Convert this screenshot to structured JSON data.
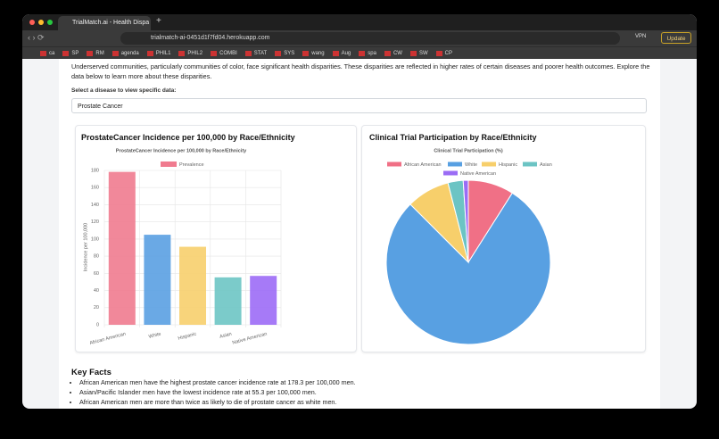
{
  "browser": {
    "tab_title": "TrialMatch.ai - Health Dispa",
    "url": "trialmatch-ai-0451d1f7fd04.herokuapp.com",
    "bookmarks": [
      "ca",
      "SP",
      "RM",
      "agenda",
      "PHIL1",
      "PHIL2",
      "COMBI",
      "STAT",
      "SYS",
      "wang",
      "Aug",
      "spa",
      "CW",
      "SW",
      "CP"
    ],
    "vpn": "VPN",
    "update": "Update"
  },
  "page": {
    "intro": "Underserved communities, particularly communities of color, face significant health disparities. These disparities are reflected in higher rates of certain diseases and poorer health outcomes. Explore the data below to learn more about these disparities.",
    "select_label": "Select a disease to view specific data:",
    "selected": "Prostate Cancer",
    "bar_card_title": "ProstateCancer Incidence per 100,000 by Race/Ethnicity",
    "pie_card_title": "Clinical Trial Participation by Race/Ethnicity",
    "key_facts_title": "Key Facts",
    "key_facts": [
      "African American men have the highest prostate cancer incidence rate at 178.3 per 100,000 men.",
      "Asian/Pacific Islander men have the lowest incidence rate at 55.3 per 100,000 men.",
      "African American men are more than twice as likely to die of prostate cancer as white men."
    ]
  },
  "chart_data": [
    {
      "type": "bar",
      "title": "ProstateCancer Incidence per 100,000 by Race/Ethnicity",
      "y_label": "Incidence per 100,000",
      "categories": [
        "African American",
        "White",
        "Hispanic",
        "Asian",
        "Native American"
      ],
      "series": [
        {
          "name": "Prevalence",
          "color": "#f07b8f",
          "colors": [
            "#f07b8f",
            "#5aa0e2",
            "#f7cf6d",
            "#6dc5c4",
            "#9c6cf6"
          ],
          "values": [
            178.3,
            105,
            91,
            55.3,
            57
          ]
        }
      ],
      "ylim": [
        0,
        180
      ],
      "yticks": [
        0,
        20,
        40,
        60,
        80,
        100,
        120,
        140,
        160,
        180
      ],
      "grid": true
    },
    {
      "type": "pie",
      "title": "Clinical Trial Participation (%)",
      "categories": [
        "African American",
        "White",
        "Hispanic",
        "Asian",
        "Native American"
      ],
      "values": [
        9,
        78.5,
        8.5,
        3,
        1
      ],
      "colors": [
        "#f07086",
        "#58a0e2",
        "#f7cf6b",
        "#6cc4c4",
        "#9b6cf5"
      ]
    }
  ]
}
